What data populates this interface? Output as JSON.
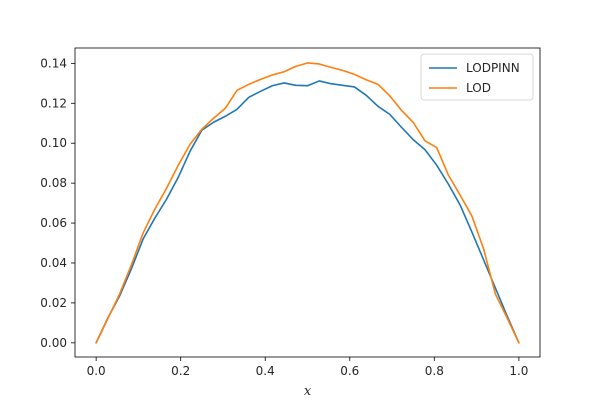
{
  "chart_data": {
    "type": "line",
    "title": "",
    "xlabel": "x",
    "ylabel": "",
    "xlim": [
      -0.05,
      1.05
    ],
    "ylim": [
      -0.0071,
      0.1477
    ],
    "xticks": [
      0.0,
      0.2,
      0.4,
      0.6,
      0.8,
      1.0
    ],
    "xtick_labels": [
      "0.0",
      "0.2",
      "0.4",
      "0.6",
      "0.8",
      "1.0"
    ],
    "yticks": [
      0.0,
      0.02,
      0.04,
      0.06,
      0.08,
      0.1,
      0.12,
      0.14
    ],
    "ytick_labels": [
      "0.00",
      "0.02",
      "0.04",
      "0.06",
      "0.08",
      "0.10",
      "0.12",
      "0.14"
    ],
    "grid": false,
    "legend_position": "top-right",
    "x": [
      0.0,
      0.0278,
      0.0556,
      0.0833,
      0.1111,
      0.1389,
      0.1667,
      0.1944,
      0.2222,
      0.25,
      0.2778,
      0.3056,
      0.3333,
      0.3611,
      0.3889,
      0.4167,
      0.4444,
      0.4722,
      0.5,
      0.5278,
      0.5556,
      0.5833,
      0.6111,
      0.6389,
      0.6667,
      0.6944,
      0.7222,
      0.75,
      0.7778,
      0.8056,
      0.8333,
      0.8611,
      0.8889,
      0.9167,
      0.9444,
      0.9722,
      1.0
    ],
    "series": [
      {
        "name": "LODPINN",
        "color": "#1f77b4",
        "values": [
          0.0,
          0.0125,
          0.0235,
          0.037,
          0.052,
          0.0625,
          0.072,
          0.083,
          0.096,
          0.1065,
          0.1105,
          0.1135,
          0.117,
          0.123,
          0.126,
          0.1288,
          0.1302,
          0.129,
          0.1288,
          0.1312,
          0.1298,
          0.129,
          0.1282,
          0.124,
          0.1185,
          0.1145,
          0.108,
          0.1018,
          0.0968,
          0.089,
          0.0795,
          0.069,
          0.0555,
          0.0415,
          0.0275,
          0.0135,
          0.0
        ]
      },
      {
        "name": "LOD",
        "color": "#ff7f0e",
        "values": [
          0.0,
          0.0122,
          0.0245,
          0.039,
          0.055,
          0.067,
          0.0775,
          0.089,
          0.0995,
          0.107,
          0.1125,
          0.1175,
          0.1265,
          0.1295,
          0.132,
          0.1342,
          0.1358,
          0.1385,
          0.1402,
          0.1397,
          0.138,
          0.1365,
          0.1345,
          0.1318,
          0.1295,
          0.1238,
          0.1165,
          0.1105,
          0.1012,
          0.0978,
          0.084,
          0.074,
          0.0635,
          0.047,
          0.0245,
          0.0125,
          0.0
        ]
      }
    ]
  }
}
